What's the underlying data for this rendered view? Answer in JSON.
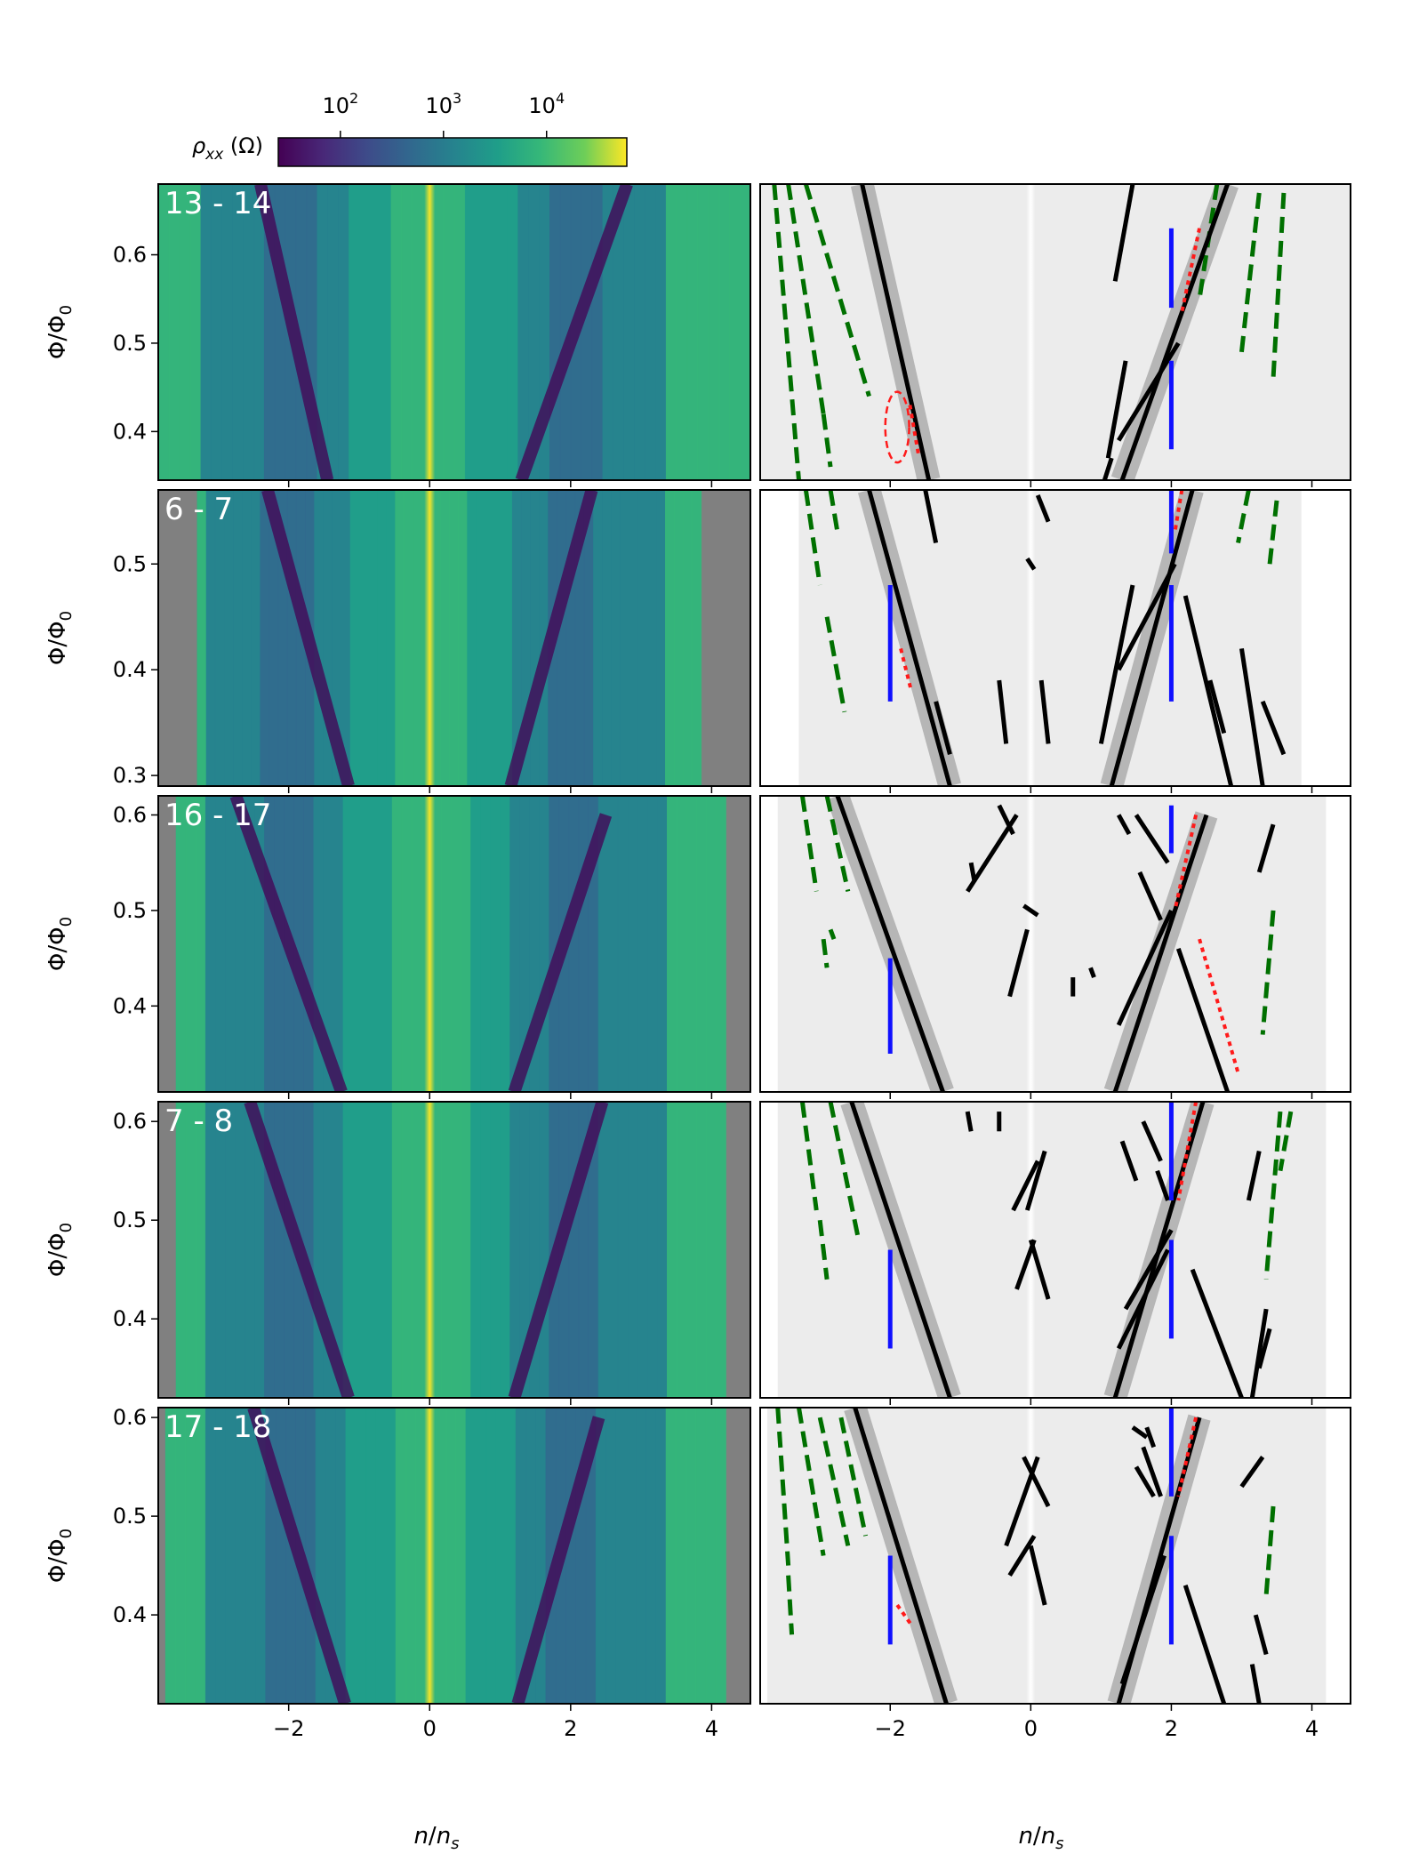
{
  "figure": {
    "colorbar": {
      "label_prefix": "ρ",
      "label_sub": "xx",
      "label_suffix": " (Ω)",
      "ticks": [
        {
          "base": "10",
          "exp": "2",
          "value": 100
        },
        {
          "base": "10",
          "exp": "3",
          "value": 1000
        },
        {
          "base": "10",
          "exp": "4",
          "value": 10000
        }
      ],
      "scale": "log",
      "range": [
        25,
        60000
      ],
      "colormap": "viridis"
    },
    "xlabel_main": "n",
    "xlabel_sub": "n",
    "xlabel_subscript": "s",
    "ylabel_main": "Φ/Φ",
    "ylabel_subscript": "0",
    "missing_data_color": "#808080",
    "annotation_colors": {
      "solid": "#000000",
      "dashed": "#007000",
      "vertical": "#1010ff",
      "dotted": "#ff1a1a",
      "ellipse": "#ff1a1a"
    }
  },
  "chart_data": {
    "type": "heatmap",
    "xlim": [
      -3.85,
      4.55
    ],
    "x_ticks": [
      {
        "v": -2,
        "label": "−2"
      },
      {
        "v": 0,
        "label": "0"
      },
      {
        "v": 2,
        "label": "2"
      },
      {
        "v": 4,
        "label": "4"
      }
    ],
    "panels": [
      {
        "label": "13 - 14",
        "ylim": [
          0.345,
          0.68
        ],
        "y_ticks": [
          {
            "v": 0.4,
            "label": "0.4"
          },
          {
            "v": 0.5,
            "label": "0.5"
          },
          {
            "v": 0.6,
            "label": "0.6"
          }
        ],
        "data_x_range": [
          -3.85,
          4.55
        ],
        "fill_edges": true,
        "solid": [
          [
            -2.4,
            0.68,
            -1.45,
            0.345
          ],
          [
            1.3,
            0.345,
            2.8,
            0.68
          ],
          [
            1.25,
            0.39,
            2.1,
            0.5
          ],
          [
            1.1,
            0.37,
            1.35,
            0.48
          ],
          [
            1.05,
            0.345,
            1.15,
            0.37
          ],
          [
            1.2,
            0.57,
            1.45,
            0.68
          ]
        ],
        "dashed": [
          [
            -3.65,
            0.68,
            -3.3,
            0.345
          ],
          [
            -3.45,
            0.68,
            -2.95,
            0.42
          ],
          [
            -2.95,
            0.42,
            -2.85,
            0.36
          ],
          [
            -3.2,
            0.68,
            -2.3,
            0.44
          ],
          [
            2.65,
            0.68,
            2.4,
            0.55
          ],
          [
            3.25,
            0.67,
            3.0,
            0.49
          ],
          [
            3.6,
            0.67,
            3.45,
            0.46
          ]
        ],
        "vertical": [
          [
            2.0,
            0.38,
            0.48
          ],
          [
            2.0,
            0.54,
            0.63
          ]
        ],
        "dotted": [
          [
            2.4,
            0.63,
            2.15,
            0.535
          ],
          [
            -1.72,
            0.43,
            -1.6,
            0.375
          ]
        ],
        "ellipse": [
          -1.9,
          0.405,
          0.17,
          0.04
        ]
      },
      {
        "label": "6 - 7",
        "ylim": [
          0.29,
          0.57
        ],
        "y_ticks": [
          {
            "v": 0.3,
            "label": "0.3"
          },
          {
            "v": 0.4,
            "label": "0.4"
          },
          {
            "v": 0.5,
            "label": "0.5"
          }
        ],
        "data_x_range": [
          -3.3,
          3.85
        ],
        "fill_edges": false,
        "solid": [
          [
            -2.3,
            0.57,
            -1.15,
            0.29
          ],
          [
            1.15,
            0.29,
            2.3,
            0.57
          ],
          [
            1.25,
            0.4,
            2.05,
            0.5
          ],
          [
            1.0,
            0.33,
            1.45,
            0.48
          ],
          [
            2.2,
            0.47,
            2.85,
            0.29
          ],
          [
            3.0,
            0.42,
            3.3,
            0.29
          ],
          [
            3.3,
            0.37,
            3.6,
            0.32
          ],
          [
            2.55,
            0.39,
            2.75,
            0.34
          ],
          [
            -1.5,
            0.57,
            -1.35,
            0.52
          ],
          [
            -1.35,
            0.37,
            -1.15,
            0.32
          ],
          [
            -0.45,
            0.39,
            -0.35,
            0.33
          ],
          [
            0.15,
            0.39,
            0.25,
            0.33
          ],
          [
            0.1,
            0.565,
            0.25,
            0.54
          ],
          [
            -0.05,
            0.505,
            0.05,
            0.495
          ]
        ],
        "dashed": [
          [
            -3.2,
            0.57,
            -3.0,
            0.48
          ],
          [
            -2.85,
            0.57,
            -2.75,
            0.53
          ],
          [
            -2.9,
            0.45,
            -2.65,
            0.36
          ],
          [
            3.1,
            0.57,
            2.95,
            0.52
          ],
          [
            3.5,
            0.56,
            3.4,
            0.5
          ]
        ],
        "vertical": [
          [
            -2.0,
            0.37,
            0.48
          ],
          [
            2.0,
            0.37,
            0.48
          ],
          [
            2.0,
            0.51,
            0.57
          ]
        ],
        "dotted": [
          [
            2.15,
            0.57,
            2.05,
            0.53
          ],
          [
            -1.85,
            0.42,
            -1.7,
            0.38
          ]
        ],
        "ellipse": null
      },
      {
        "label": "16 - 17",
        "ylim": [
          0.31,
          0.62
        ],
        "y_ticks": [
          {
            "v": 0.4,
            "label": "0.4"
          },
          {
            "v": 0.5,
            "label": "0.5"
          },
          {
            "v": 0.6,
            "label": "0.6"
          }
        ],
        "data_x_range": [
          -3.6,
          4.2
        ],
        "fill_edges": false,
        "solid": [
          [
            -2.75,
            0.62,
            -1.25,
            0.31
          ],
          [
            1.2,
            0.31,
            2.5,
            0.6
          ],
          [
            1.25,
            0.38,
            2.0,
            0.5
          ],
          [
            1.55,
            0.54,
            1.85,
            0.49
          ],
          [
            1.5,
            0.6,
            1.95,
            0.55
          ],
          [
            1.25,
            0.6,
            1.4,
            0.58
          ],
          [
            2.1,
            0.46,
            2.8,
            0.31
          ],
          [
            3.25,
            0.54,
            3.45,
            0.59
          ],
          [
            -0.85,
            0.55,
            -0.8,
            0.53
          ],
          [
            -0.45,
            0.61,
            -0.25,
            0.58
          ],
          [
            -0.9,
            0.52,
            -0.2,
            0.6
          ],
          [
            -0.1,
            0.505,
            0.1,
            0.495
          ],
          [
            -0.3,
            0.41,
            -0.05,
            0.48
          ],
          [
            0.6,
            0.41,
            0.6,
            0.43
          ],
          [
            0.9,
            0.43,
            0.85,
            0.44
          ]
        ],
        "dashed": [
          [
            -3.25,
            0.62,
            -3.05,
            0.52
          ],
          [
            -2.9,
            0.62,
            -2.6,
            0.52
          ],
          [
            -2.95,
            0.47,
            -2.9,
            0.44
          ],
          [
            -2.85,
            0.48,
            -2.8,
            0.47
          ],
          [
            3.45,
            0.5,
            3.3,
            0.37
          ]
        ],
        "vertical": [
          [
            -2.0,
            0.35,
            0.45
          ],
          [
            2.0,
            0.56,
            0.61
          ]
        ],
        "dotted": [
          [
            2.35,
            0.6,
            2.05,
            0.5
          ],
          [
            2.4,
            0.47,
            2.95,
            0.33
          ]
        ],
        "ellipse": null
      },
      {
        "label": "7 - 8",
        "ylim": [
          0.32,
          0.62
        ],
        "y_ticks": [
          {
            "v": 0.4,
            "label": "0.4"
          },
          {
            "v": 0.5,
            "label": "0.5"
          },
          {
            "v": 0.6,
            "label": "0.6"
          }
        ],
        "data_x_range": [
          -3.6,
          4.2
        ],
        "fill_edges": false,
        "solid": [
          [
            -2.55,
            0.62,
            -1.15,
            0.32
          ],
          [
            1.2,
            0.32,
            2.45,
            0.62
          ],
          [
            1.25,
            0.37,
            1.95,
            0.47
          ],
          [
            1.35,
            0.41,
            2.0,
            0.49
          ],
          [
            1.3,
            0.58,
            1.5,
            0.54
          ],
          [
            1.6,
            0.6,
            1.85,
            0.56
          ],
          [
            1.8,
            0.55,
            1.95,
            0.52
          ],
          [
            2.3,
            0.45,
            3.0,
            0.32
          ],
          [
            3.1,
            0.52,
            3.25,
            0.57
          ],
          [
            3.35,
            0.41,
            3.15,
            0.32
          ],
          [
            3.4,
            0.39,
            3.25,
            0.35
          ],
          [
            -0.9,
            0.61,
            -0.85,
            0.59
          ],
          [
            -0.45,
            0.59,
            -0.45,
            0.61
          ],
          [
            -0.25,
            0.51,
            0.1,
            0.56
          ],
          [
            -0.05,
            0.51,
            0.2,
            0.57
          ],
          [
            -0.2,
            0.43,
            0.05,
            0.48
          ],
          [
            0.0,
            0.48,
            0.25,
            0.42
          ]
        ],
        "dashed": [
          [
            -3.25,
            0.62,
            -3.05,
            0.51
          ],
          [
            -2.85,
            0.62,
            -2.45,
            0.48
          ],
          [
            -3.0,
            0.5,
            -2.9,
            0.44
          ],
          [
            3.55,
            0.61,
            3.35,
            0.44
          ],
          [
            3.7,
            0.61,
            3.55,
            0.55
          ]
        ],
        "vertical": [
          [
            -2.0,
            0.37,
            0.47
          ],
          [
            2.0,
            0.38,
            0.48
          ],
          [
            2.0,
            0.52,
            0.62
          ]
        ],
        "dotted": [
          [
            2.35,
            0.62,
            2.1,
            0.52
          ]
        ],
        "ellipse": null
      },
      {
        "label": "17 - 18",
        "ylim": [
          0.31,
          0.61
        ],
        "y_ticks": [
          {
            "v": 0.4,
            "label": "0.4"
          },
          {
            "v": 0.5,
            "label": "0.5"
          },
          {
            "v": 0.6,
            "label": "0.6"
          }
        ],
        "data_x_range": [
          -3.75,
          4.2
        ],
        "fill_edges": false,
        "solid": [
          [
            -2.5,
            0.61,
            -1.2,
            0.31
          ],
          [
            1.25,
            0.31,
            2.4,
            0.6
          ],
          [
            1.3,
            0.33,
            1.9,
            0.46
          ],
          [
            1.5,
            0.55,
            1.75,
            0.52
          ],
          [
            1.6,
            0.57,
            1.85,
            0.52
          ],
          [
            2.2,
            0.43,
            2.75,
            0.31
          ],
          [
            3.2,
            0.4,
            3.35,
            0.36
          ],
          [
            3.0,
            0.53,
            3.3,
            0.56
          ],
          [
            3.15,
            0.35,
            3.25,
            0.31
          ],
          [
            -0.35,
            0.47,
            0.1,
            0.56
          ],
          [
            0.25,
            0.51,
            -0.1,
            0.56
          ],
          [
            -0.3,
            0.44,
            0.05,
            0.48
          ],
          [
            0.0,
            0.47,
            0.2,
            0.41
          ],
          [
            1.45,
            0.59,
            1.65,
            0.58
          ],
          [
            1.65,
            0.59,
            1.75,
            0.57
          ]
        ],
        "dashed": [
          [
            -3.6,
            0.61,
            -3.45,
            0.45
          ],
          [
            -3.45,
            0.44,
            -3.4,
            0.38
          ],
          [
            -3.3,
            0.61,
            -2.95,
            0.46
          ],
          [
            -3.0,
            0.6,
            -2.6,
            0.47
          ],
          [
            -2.7,
            0.6,
            -2.35,
            0.48
          ],
          [
            3.45,
            0.51,
            3.35,
            0.42
          ]
        ],
        "vertical": [
          [
            -2.0,
            0.37,
            0.46
          ],
          [
            2.0,
            0.37,
            0.48
          ],
          [
            2.0,
            0.52,
            0.61
          ]
        ],
        "dotted": [
          [
            2.35,
            0.6,
            2.1,
            0.52
          ],
          [
            -1.9,
            0.41,
            -1.7,
            0.39
          ]
        ],
        "ellipse": null
      }
    ]
  }
}
